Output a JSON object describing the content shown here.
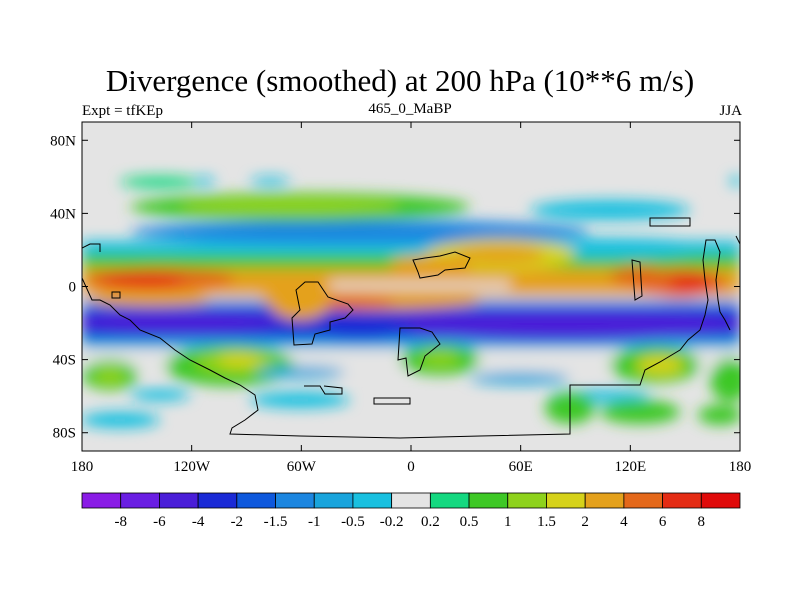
{
  "chart_data": {
    "type": "heatmap",
    "title": "Divergence (smoothed) at 200 hPa (10**6 m/s)",
    "left_string": "Expt = tfKEp",
    "center_string": "465_0_MaBP",
    "right_string": "JJA",
    "x_ticks": [
      "180",
      "120W",
      "60W",
      "0",
      "60E",
      "120E",
      "180"
    ],
    "x_tick_values": [
      -180,
      -120,
      -60,
      0,
      60,
      120,
      180
    ],
    "y_ticks": [
      "80N",
      "40N",
      "0",
      "40S",
      "80S"
    ],
    "y_tick_values": [
      80,
      40,
      0,
      -40,
      -80
    ],
    "xlim": [
      -180,
      180
    ],
    "ylim": [
      -90,
      90
    ],
    "colorbar": {
      "labels": [
        "-8",
        "-6",
        "-4",
        "-2",
        "-1.5",
        "-1",
        "-0.5",
        "-0.2",
        "0.2",
        "0.5",
        "1",
        "1.5",
        "2",
        "4",
        "6",
        "8"
      ],
      "colors": [
        "#8a1ce6",
        "#6a1ee3",
        "#4a1ed8",
        "#1a2ad6",
        "#0e58dc",
        "#1c86e0",
        "#19a4dc",
        "#19c0e0",
        "#e4e4e4",
        "#14d880",
        "#3ec826",
        "#8ed21c",
        "#d6d21a",
        "#e4a11c",
        "#e4681a",
        "#e42c14",
        "#e00a0a"
      ]
    },
    "features": [
      {
        "lon": -100,
        "lat": 23,
        "value": 3.5
      },
      {
        "lon": -30,
        "lat": 6,
        "value": -0.5
      },
      {
        "lon": -55,
        "lat": -6,
        "value": 3
      },
      {
        "lon": -90,
        "lat": -20,
        "value": -2.5
      },
      {
        "lon": -40,
        "lat": 23,
        "value": 1.5
      },
      {
        "lon": 40,
        "lat": 10,
        "value": 2.5
      },
      {
        "lon": 40,
        "lat": -12,
        "value": -1.5
      },
      {
        "lon": 90,
        "lat": -12,
        "value": -2
      },
      {
        "lon": 145,
        "lat": 3,
        "value": 3.5
      },
      {
        "lon": 130,
        "lat": -15,
        "value": -2.5
      },
      {
        "lon": -100,
        "lat": 45,
        "value": 0.8
      },
      {
        "lon": 110,
        "lat": 40,
        "value": -0.5
      },
      {
        "lon": -130,
        "lat": -45,
        "value": 1.2
      },
      {
        "lon": -160,
        "lat": -50,
        "value": 1
      },
      {
        "lon": 30,
        "lat": -45,
        "value": 1.3
      },
      {
        "lon": 120,
        "lat": -45,
        "value": 1.8
      },
      {
        "lon": 95,
        "lat": -63,
        "value": 1
      },
      {
        "lon": -100,
        "lat": -65,
        "value": -0.5
      },
      {
        "lon": 170,
        "lat": -50,
        "value": 1
      }
    ]
  }
}
